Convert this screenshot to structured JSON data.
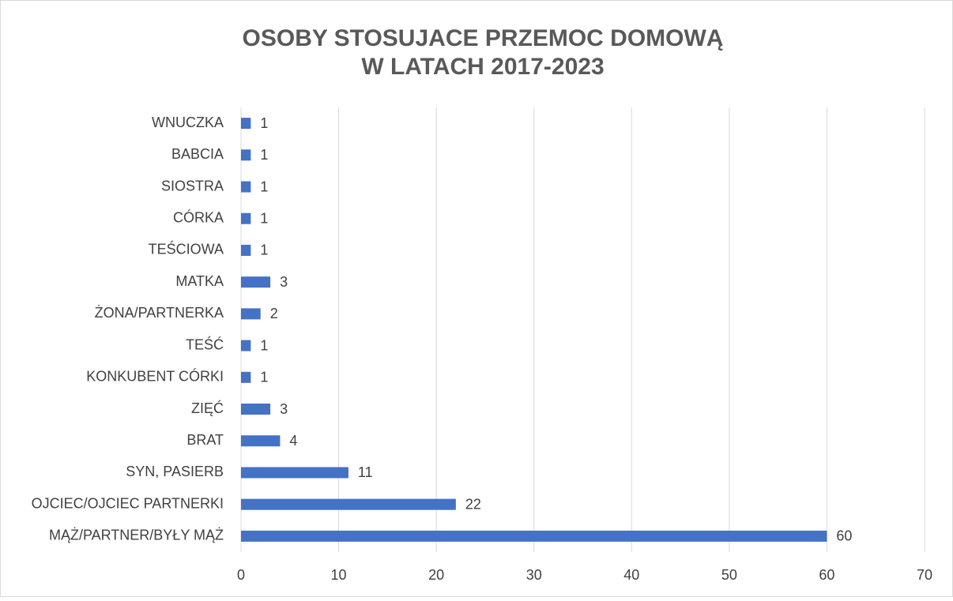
{
  "chart_data": {
    "type": "bar",
    "orientation": "horizontal",
    "title": [
      "OSOBY STOSUJACE PRZEMOC DOMOWĄ",
      "W LATACH 2017-2023"
    ],
    "categories": [
      "WNUCZKA",
      "BABCIA",
      "SIOSTRA",
      "CÓRKA",
      "TEŚCIOWA",
      "MATKA",
      "ŻONA/PARTNERKA",
      "TEŚĆ",
      "KONKUBENT CÓRKI",
      "ZIĘĆ",
      "BRAT",
      "SYN, PASIERB",
      "OJCIEC/OJCIEC PARTNERKI",
      "MĄŻ/PARTNER/BYŁY MĄŻ"
    ],
    "values": [
      1,
      1,
      1,
      1,
      1,
      3,
      2,
      1,
      1,
      3,
      4,
      11,
      22,
      60
    ],
    "color": "#4472c4",
    "xlim": [
      0,
      70
    ],
    "xticks": [
      0,
      10,
      20,
      30,
      40,
      50,
      60,
      70
    ],
    "grid": true,
    "data_labels": true
  }
}
